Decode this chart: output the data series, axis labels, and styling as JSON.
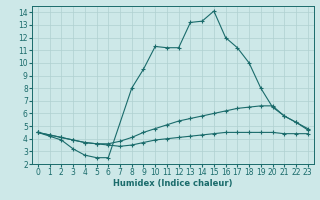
{
  "title": "",
  "xlabel": "Humidex (Indice chaleur)",
  "ylabel": "",
  "bg_color": "#cde8e8",
  "line_color": "#1a6b6b",
  "grid_color": "#b0d0d0",
  "xlim": [
    -0.5,
    23.5
  ],
  "ylim": [
    2,
    14.5
  ],
  "xticks": [
    0,
    1,
    2,
    3,
    4,
    5,
    6,
    7,
    8,
    9,
    10,
    11,
    12,
    13,
    14,
    15,
    16,
    17,
    18,
    19,
    20,
    21,
    22,
    23
  ],
  "yticks": [
    2,
    3,
    4,
    5,
    6,
    7,
    8,
    9,
    10,
    11,
    12,
    13,
    14
  ],
  "series": [
    {
      "x": [
        0,
        1,
        2,
        3,
        4,
        5,
        6,
        8,
        9,
        10,
        11,
        12,
        13,
        14,
        15,
        16,
        17,
        18,
        19,
        20,
        21,
        22,
        23
      ],
      "y": [
        4.5,
        4.2,
        3.9,
        3.2,
        2.7,
        2.5,
        2.5,
        8.0,
        9.5,
        11.3,
        11.2,
        11.2,
        13.2,
        13.3,
        14.1,
        12.0,
        11.2,
        10.0,
        8.0,
        6.5,
        5.8,
        5.3,
        4.7
      ]
    },
    {
      "x": [
        0,
        1,
        2,
        3,
        4,
        5,
        6,
        7,
        8,
        9,
        10,
        11,
        12,
        13,
        14,
        15,
        16,
        17,
        18,
        19,
        20,
        21,
        22,
        23
      ],
      "y": [
        4.5,
        4.3,
        4.1,
        3.9,
        3.7,
        3.6,
        3.6,
        3.8,
        4.1,
        4.5,
        4.8,
        5.1,
        5.4,
        5.6,
        5.8,
        6.0,
        6.2,
        6.4,
        6.5,
        6.6,
        6.6,
        5.8,
        5.3,
        4.8
      ]
    },
    {
      "x": [
        0,
        1,
        2,
        3,
        4,
        5,
        6,
        7,
        8,
        9,
        10,
        11,
        12,
        13,
        14,
        15,
        16,
        17,
        18,
        19,
        20,
        21,
        22,
        23
      ],
      "y": [
        4.5,
        4.3,
        4.1,
        3.9,
        3.7,
        3.6,
        3.5,
        3.4,
        3.5,
        3.7,
        3.9,
        4.0,
        4.1,
        4.2,
        4.3,
        4.4,
        4.5,
        4.5,
        4.5,
        4.5,
        4.5,
        4.4,
        4.4,
        4.4
      ]
    }
  ]
}
